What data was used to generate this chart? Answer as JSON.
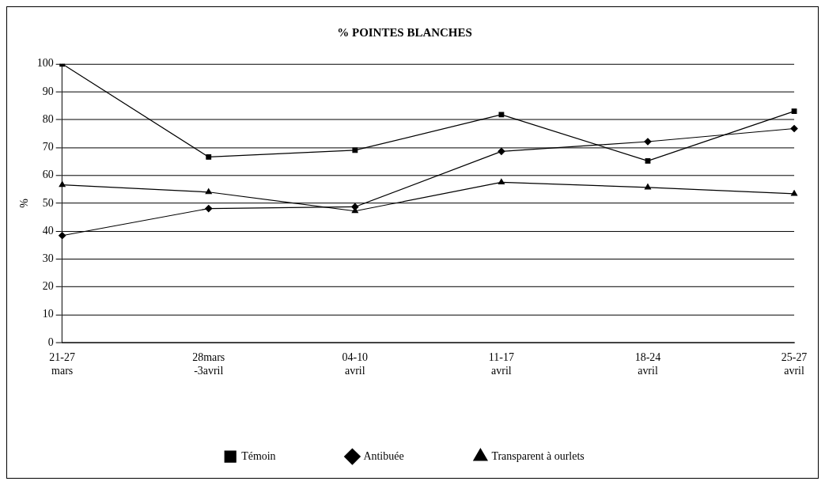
{
  "chart_data": {
    "type": "line",
    "title": "% POINTES BLANCHES",
    "ylabel": "%",
    "categories": [
      "21-27 mars",
      "28mars -3avril",
      "04-10 avril",
      "11-17 avril",
      "18-24 avril",
      "25-27 avril"
    ],
    "series": [
      {
        "name": "Témoin",
        "color": "#000000",
        "marker": "square",
        "values": [
          100,
          66.6,
          69,
          81.8,
          65.2,
          83
        ]
      },
      {
        "name": "Antibuée",
        "color": "#000000",
        "marker": "diamond",
        "values": [
          38.4,
          48.1,
          48.7,
          68.6,
          72.1,
          76.8
        ]
      },
      {
        "name": "Transparent à ourlets",
        "color": "#000000",
        "marker": "triangle",
        "values": [
          56.6,
          54,
          47.2,
          57.5,
          55.7,
          53.4
        ]
      }
    ],
    "ylim": [
      0,
      100
    ],
    "yticks": [
      0,
      10,
      20,
      30,
      40,
      50,
      60,
      70,
      80,
      90,
      100
    ],
    "grid": "y",
    "legend": "bottom",
    "line_style": "solid"
  }
}
